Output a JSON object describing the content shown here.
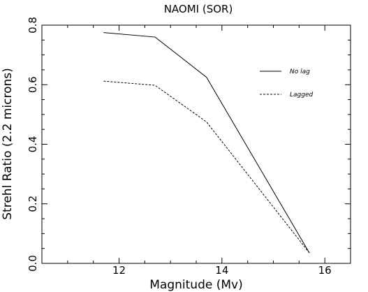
{
  "chart_data": {
    "type": "line",
    "title": "NAOMI (SOR)",
    "xlabel": "Magnitude (Mv)",
    "ylabel": "Strehl Ratio (2.2 microns)",
    "xlim": [
      10.5,
      16.5
    ],
    "ylim": [
      0.0,
      0.8
    ],
    "x_ticks": [
      12,
      14,
      16
    ],
    "y_ticks": [
      0.0,
      0.2,
      0.4,
      0.6,
      0.8
    ],
    "x_tick_labels": [
      "12",
      "14",
      "16"
    ],
    "y_tick_labels": [
      "0.0",
      "0.2",
      "0.4",
      "0.6",
      "0.8"
    ],
    "grid": false,
    "legend_position": "top-right",
    "series": [
      {
        "name": "No lag",
        "line_style": "solid",
        "color": "#000000",
        "x": [
          11.7,
          12.7,
          13.7,
          15.7
        ],
        "y": [
          0.775,
          0.76,
          0.625,
          0.035
        ]
      },
      {
        "name": "Lagged",
        "line_style": "dashed",
        "color": "#000000",
        "x": [
          11.7,
          12.7,
          13.7,
          15.7
        ],
        "y": [
          0.612,
          0.598,
          0.475,
          0.035
        ]
      }
    ]
  }
}
